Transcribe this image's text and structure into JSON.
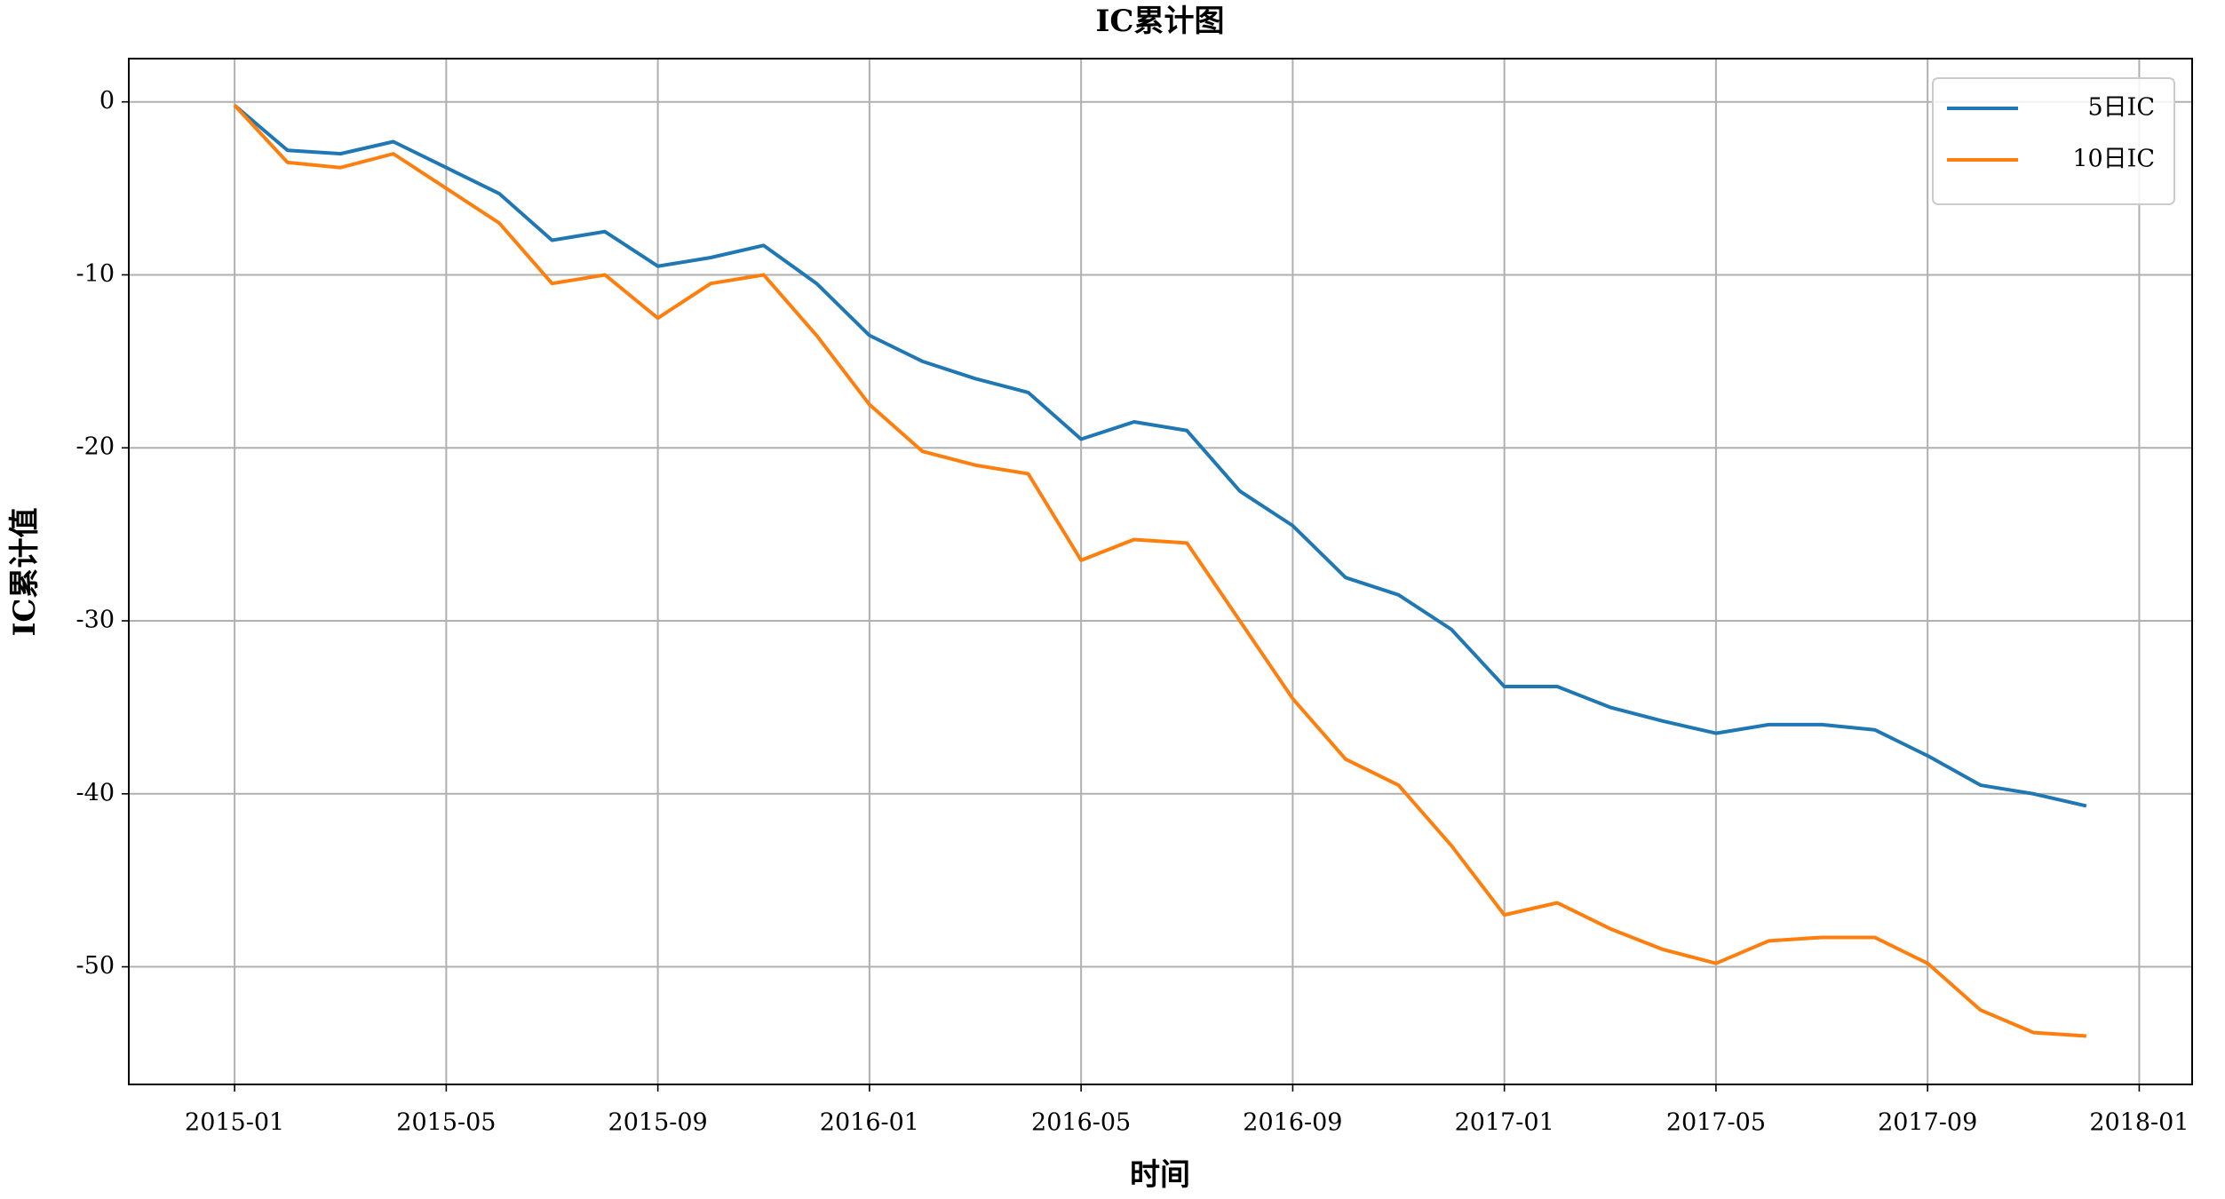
{
  "chart_data": {
    "type": "line",
    "title": "IC累计图",
    "x_label": "时间",
    "y_label": "IC累计值",
    "x": [
      "2015-01",
      "2015-02",
      "2015-03",
      "2015-04",
      "2015-05",
      "2015-06",
      "2015-07",
      "2015-08",
      "2015-09",
      "2015-10",
      "2015-11",
      "2015-12",
      "2016-01",
      "2016-02",
      "2016-03",
      "2016-04",
      "2016-05",
      "2016-06",
      "2016-07",
      "2016-08",
      "2016-09",
      "2016-10",
      "2016-11",
      "2016-12",
      "2017-01",
      "2017-02",
      "2017-03",
      "2017-04",
      "2017-05",
      "2017-06",
      "2017-07",
      "2017-08",
      "2017-09",
      "2017-10",
      "2017-11",
      "2017-12"
    ],
    "series": [
      {
        "name": "5日IC",
        "color": "#1f77b4",
        "values": [
          -0.2,
          -2.8,
          -3,
          -2.3,
          -3.8,
          -5.3,
          -8,
          -7.5,
          -9.5,
          -9,
          -8.3,
          -10.5,
          -13.5,
          -15,
          -16,
          -16.8,
          -19.5,
          -18.5,
          -19,
          -22.5,
          -24.5,
          -27.5,
          -28.5,
          -30.5,
          -33.8,
          -33.8,
          -35,
          -35.8,
          -36.5,
          -36,
          -36,
          -36.3,
          -37.8,
          -39.5,
          -40,
          -40.7
        ]
      },
      {
        "name": "10日IC",
        "color": "#ff7f0e",
        "values": [
          -0.2,
          -3.5,
          -3.8,
          -3,
          -5,
          -7,
          -10.5,
          -10,
          -12.5,
          -10.5,
          -10,
          -13.5,
          -17.5,
          -20.2,
          -21,
          -21.5,
          -26.5,
          -25.3,
          -25.5,
          -30,
          -34.5,
          -38,
          -39.5,
          -43,
          -47,
          -46.3,
          -47.8,
          -49,
          -49.8,
          -48.5,
          -48.3,
          -48.3,
          -49.8,
          -52.5,
          -53.8,
          -54
        ]
      }
    ],
    "xlim": [
      "2014-11",
      "2018-02"
    ],
    "xticks": [
      "2015-01",
      "2015-05",
      "2015-09",
      "2016-01",
      "2016-05",
      "2016-09",
      "2017-01",
      "2017-05",
      "2017-09",
      "2018-01"
    ],
    "ylim": [
      -56.8,
      2.5
    ],
    "yticks": [
      0,
      -10,
      -20,
      -30,
      -40,
      -50
    ],
    "grid": true,
    "legend": "upper-right"
  }
}
